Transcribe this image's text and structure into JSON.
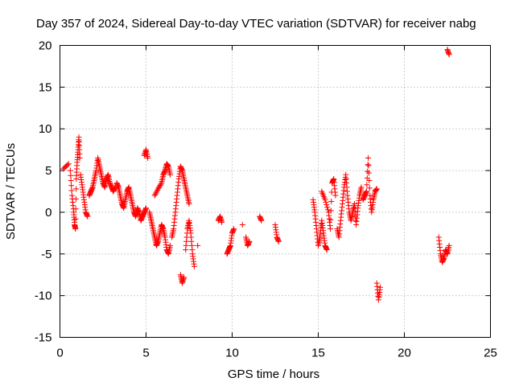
{
  "chart_data": {
    "type": "scatter",
    "title": "Day 357 of 2024, Sidereal Day-to-day VTEC variation (SDTVAR) for receiver nabg",
    "xlabel": "GPS time / hours",
    "ylabel": "SDTVAR / TECUs",
    "xlim": [
      0,
      25
    ],
    "ylim": [
      -15,
      20
    ],
    "xticks": [
      0,
      5,
      10,
      15,
      20,
      25
    ],
    "yticks": [
      -15,
      -10,
      -5,
      0,
      5,
      10,
      15,
      20
    ],
    "grid": true,
    "marker": "+",
    "color": "#ff0000",
    "segments": [
      {
        "x": [
          0.2,
          0.5
        ],
        "y": [
          5.2,
          5.8
        ]
      },
      {
        "x": [
          0.6,
          0.7,
          0.8,
          0.85,
          0.9,
          0.95,
          1.0,
          1.05,
          1.1,
          1.15
        ],
        "y": [
          5.0,
          2.0,
          0.0,
          -1.5,
          -2.0,
          4.0,
          6.0,
          7.5,
          9.0,
          6.5
        ]
      },
      {
        "x": [
          1.2,
          1.3,
          1.4,
          1.5,
          1.6
        ],
        "y": [
          4.5,
          3.0,
          1.5,
          0.0,
          -0.5
        ]
      },
      {
        "x": [
          1.7,
          1.8,
          1.9,
          2.0,
          2.1,
          2.2,
          2.3,
          2.4,
          2.5,
          2.6,
          2.7,
          2.8,
          2.9,
          3.0,
          3.1,
          3.2
        ],
        "y": [
          2.0,
          2.5,
          3.0,
          4.0,
          5.0,
          6.5,
          5.5,
          4.5,
          3.5,
          3.0,
          4.0,
          4.5,
          3.5,
          3.0,
          2.5,
          3.0
        ]
      },
      {
        "x": [
          3.3,
          3.4,
          3.5,
          3.6,
          3.7,
          3.8,
          3.9,
          4.0,
          4.1,
          4.2,
          4.3,
          4.4,
          4.5,
          4.6,
          4.7,
          4.8,
          4.9,
          5.0
        ],
        "y": [
          3.5,
          3.0,
          2.0,
          1.0,
          0.5,
          1.5,
          2.5,
          3.0,
          2.0,
          1.0,
          0.0,
          -0.5,
          0.5,
          0.0,
          -1.0,
          -0.5,
          0.0,
          0.5
        ]
      },
      {
        "x": [
          4.9,
          5.0,
          5.1
        ],
        "y": [
          6.8,
          7.5,
          6.5
        ]
      },
      {
        "x": [
          5.2,
          5.3,
          5.4,
          5.5,
          5.6,
          5.7,
          5.8,
          5.9,
          6.0,
          6.1,
          6.2,
          6.3,
          6.4
        ],
        "y": [
          0.0,
          -1.0,
          -2.0,
          -3.0,
          -4.0,
          -3.5,
          -2.5,
          -1.5,
          -2.0,
          -3.0,
          -4.5,
          -5.0,
          -4.0
        ]
      },
      {
        "x": [
          5.5,
          5.7,
          5.9,
          6.0,
          6.1,
          6.2,
          6.3,
          6.4
        ],
        "y": [
          2.0,
          2.8,
          3.5,
          4.5,
          5.0,
          5.8,
          5.5,
          4.5
        ]
      },
      {
        "x": [
          6.5,
          6.6,
          6.7,
          6.8,
          6.9,
          7.0,
          7.1,
          7.2,
          7.3,
          7.4,
          7.5
        ],
        "y": [
          -3.0,
          -2.0,
          0.0,
          2.0,
          4.0,
          5.5,
          5.0,
          4.0,
          3.0,
          2.0,
          1.0
        ]
      },
      {
        "x": [
          7.0,
          7.1,
          7.2
        ],
        "y": [
          -7.5,
          -8.5,
          -7.8
        ]
      },
      {
        "x": [
          7.3,
          7.4,
          7.5,
          7.6,
          7.7,
          7.8
        ],
        "y": [
          -4.5,
          -2.0,
          -1.0,
          -2.5,
          -5.0,
          -6.5
        ]
      },
      {
        "x": [
          8.0
        ],
        "y": [
          -4.0
        ]
      },
      {
        "x": [
          9.2,
          9.3,
          9.4
        ],
        "y": [
          -1.0,
          -0.5,
          -1.2
        ]
      },
      {
        "x": [
          9.7,
          9.8,
          9.9,
          10.0,
          10.1
        ],
        "y": [
          -5.0,
          -4.5,
          -4.0,
          -2.5,
          -2.0
        ]
      },
      {
        "x": [
          10.6
        ],
        "y": [
          -1.5
        ]
      },
      {
        "x": [
          10.8,
          10.9,
          11.0
        ],
        "y": [
          -3.0,
          -4.0,
          -3.5
        ]
      },
      {
        "x": [
          11.6,
          11.7
        ],
        "y": [
          -0.5,
          -1.0
        ]
      },
      {
        "x": [
          12.5,
          12.6,
          12.7
        ],
        "y": [
          -1.5,
          -3.0,
          -3.5
        ]
      },
      {
        "x": [
          14.7,
          14.8,
          14.9,
          15.0,
          15.1,
          15.2,
          15.3,
          15.4,
          15.5
        ],
        "y": [
          1.5,
          0.0,
          -2.0,
          -4.0,
          -3.0,
          -1.0,
          -2.5,
          -4.0,
          -4.5
        ]
      },
      {
        "x": [
          15.2,
          15.4,
          15.6,
          15.7,
          15.8,
          15.9,
          16.0
        ],
        "y": [
          2.5,
          1.5,
          0.0,
          -2.0,
          3.5,
          4.0,
          2.0
        ]
      },
      {
        "x": [
          16.1,
          16.2,
          16.3,
          16.4,
          16.5,
          16.6,
          16.7,
          16.8,
          16.9,
          17.0,
          17.1,
          17.2,
          17.3,
          17.4,
          17.5
        ],
        "y": [
          -2.0,
          -3.0,
          -1.0,
          1.0,
          3.0,
          4.5,
          2.0,
          0.0,
          -1.0,
          0.0,
          1.0,
          -1.5,
          0.5,
          2.0,
          3.0
        ]
      },
      {
        "x": [
          17.6,
          17.7,
          17.8,
          17.9,
          18.0,
          18.1,
          18.2,
          18.3,
          18.4
        ],
        "y": [
          1.5,
          2.0,
          2.5,
          6.5,
          2.0,
          0.0,
          1.5,
          2.5,
          2.8
        ]
      },
      {
        "x": [
          18.4,
          18.5,
          18.6
        ],
        "y": [
          -8.5,
          -10.5,
          -9.0
        ]
      },
      {
        "x": [
          22.0,
          22.1,
          22.2,
          22.3,
          22.4,
          22.5,
          22.6
        ],
        "y": [
          -3.0,
          -5.0,
          -6.0,
          -5.5,
          -4.5,
          -5.0,
          -4.0
        ]
      },
      {
        "x": [
          22.5,
          22.6
        ],
        "y": [
          19.5,
          18.9
        ]
      }
    ]
  }
}
